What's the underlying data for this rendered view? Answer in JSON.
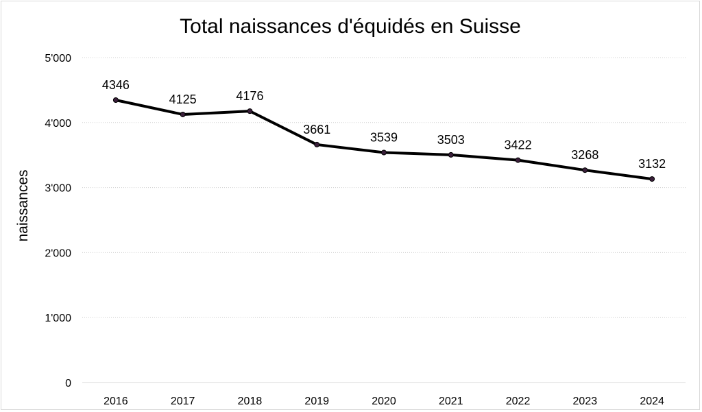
{
  "chart_data": {
    "type": "line",
    "title": "Total naissances d'équidés en Suisse",
    "xlabel": "",
    "ylabel": "naissances",
    "categories": [
      "2016",
      "2017",
      "2018",
      "2019",
      "2020",
      "2021",
      "2022",
      "2023",
      "2024"
    ],
    "series": [
      {
        "values": [
          4346,
          4125,
          4176,
          3661,
          3539,
          3503,
          3422,
          3268,
          3132
        ],
        "data_labels": [
          "4346",
          "4125",
          "4176",
          "3661",
          "3539",
          "3503",
          "3422",
          "3268",
          "3132"
        ]
      }
    ],
    "ylim": [
      0,
      5000
    ],
    "yticks": [
      0,
      1000,
      2000,
      3000,
      4000,
      5000
    ],
    "ytick_labels": [
      "0",
      "1'000",
      "2'000",
      "3'000",
      "4'000",
      "5'000"
    ],
    "grid": "horizontal",
    "legend": "none",
    "colors": {
      "line": "#000000",
      "marker": "#3a1f3a"
    }
  }
}
